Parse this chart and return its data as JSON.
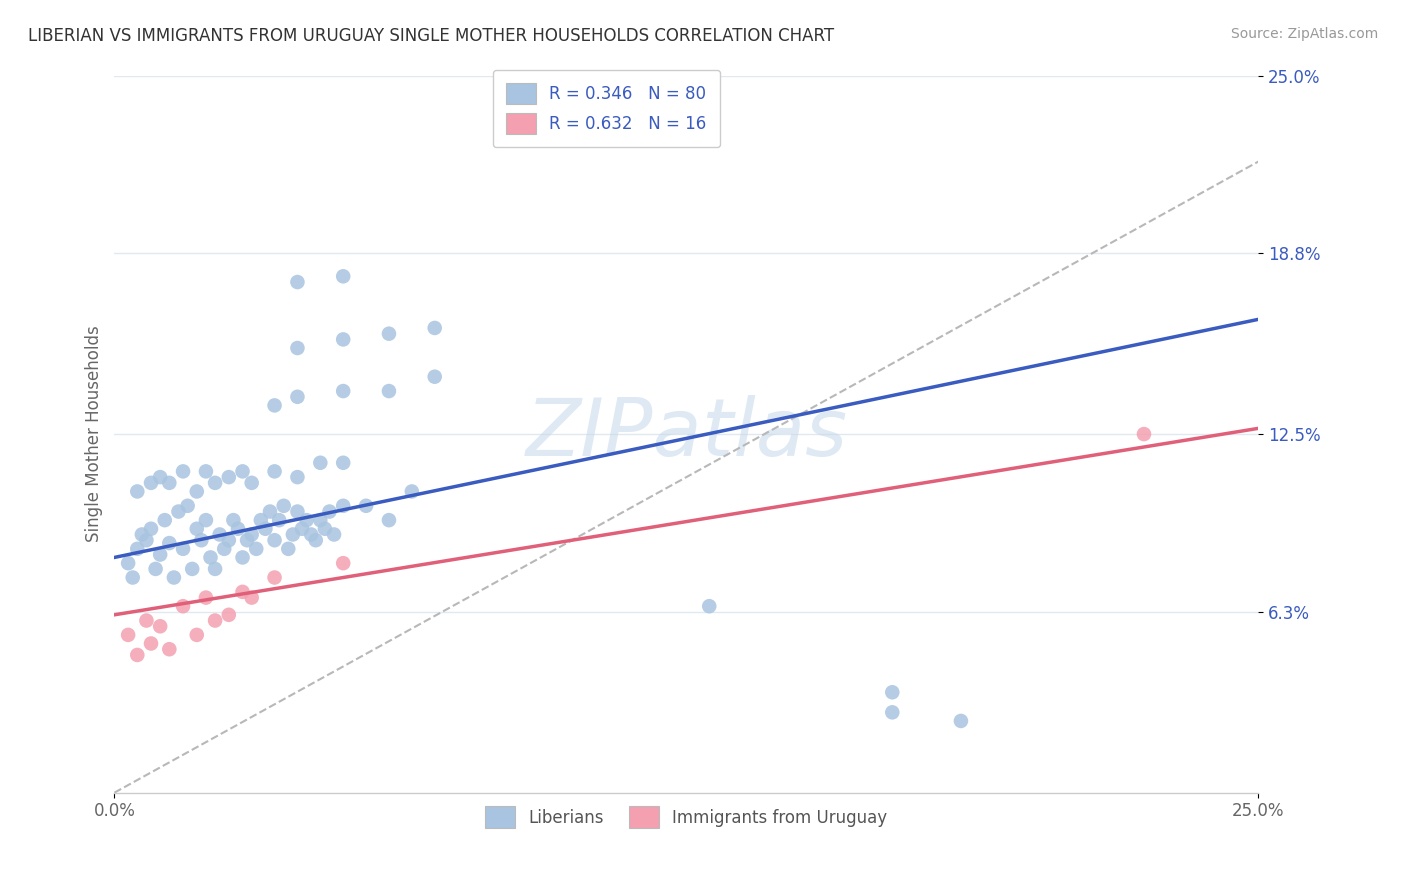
{
  "title": "LIBERIAN VS IMMIGRANTS FROM URUGUAY SINGLE MOTHER HOUSEHOLDS CORRELATION CHART",
  "source_text": "Source: ZipAtlas.com",
  "ylabel": "Single Mother Households",
  "xlim": [
    0.0,
    0.25
  ],
  "ylim": [
    0.0,
    0.25
  ],
  "y_tick_labels": [
    "6.3%",
    "12.5%",
    "18.8%",
    "25.0%"
  ],
  "y_tick_values": [
    0.063,
    0.125,
    0.188,
    0.25
  ],
  "blue_r": 0.346,
  "blue_n": 80,
  "pink_r": 0.632,
  "pink_n": 16,
  "blue_color": "#a8c4e0",
  "pink_color": "#f4a0b0",
  "blue_line_color": "#3a5bbf",
  "pink_line_color": "#e0607a",
  "dashed_line_color": "#b8b8b8",
  "legend_label_blue": "Liberians",
  "legend_label_pink": "Immigrants from Uruguay",
  "watermark": "ZIPatlas",
  "background_color": "#ffffff",
  "grid_color": "#e0e8f0",
  "blue_line_x0": 0.0,
  "blue_line_y0": 0.082,
  "blue_line_x1": 0.25,
  "blue_line_y1": 0.165,
  "pink_line_x0": 0.0,
  "pink_line_y0": 0.062,
  "pink_line_x1": 0.25,
  "pink_line_y1": 0.127,
  "dash_line_x0": 0.0,
  "dash_line_y0": 0.0,
  "dash_line_x1": 0.25,
  "dash_line_y1": 0.22,
  "blue_dots_x": [
    0.003,
    0.004,
    0.005,
    0.006,
    0.007,
    0.008,
    0.009,
    0.01,
    0.011,
    0.012,
    0.013,
    0.014,
    0.015,
    0.016,
    0.017,
    0.018,
    0.019,
    0.02,
    0.021,
    0.022,
    0.023,
    0.024,
    0.025,
    0.026,
    0.027,
    0.028,
    0.029,
    0.03,
    0.031,
    0.032,
    0.033,
    0.034,
    0.035,
    0.036,
    0.037,
    0.038,
    0.039,
    0.04,
    0.041,
    0.042,
    0.043,
    0.044,
    0.045,
    0.046,
    0.047,
    0.048,
    0.05,
    0.055,
    0.06,
    0.065,
    0.005,
    0.008,
    0.01,
    0.012,
    0.015,
    0.018,
    0.02,
    0.022,
    0.025,
    0.028,
    0.03,
    0.035,
    0.04,
    0.045,
    0.05,
    0.035,
    0.04,
    0.05,
    0.06,
    0.07,
    0.04,
    0.05,
    0.06,
    0.07,
    0.04,
    0.05,
    0.13,
    0.17,
    0.17,
    0.185
  ],
  "blue_dots_y": [
    0.08,
    0.075,
    0.085,
    0.09,
    0.088,
    0.092,
    0.078,
    0.083,
    0.095,
    0.087,
    0.075,
    0.098,
    0.085,
    0.1,
    0.078,
    0.092,
    0.088,
    0.095,
    0.082,
    0.078,
    0.09,
    0.085,
    0.088,
    0.095,
    0.092,
    0.082,
    0.088,
    0.09,
    0.085,
    0.095,
    0.092,
    0.098,
    0.088,
    0.095,
    0.1,
    0.085,
    0.09,
    0.098,
    0.092,
    0.095,
    0.09,
    0.088,
    0.095,
    0.092,
    0.098,
    0.09,
    0.1,
    0.1,
    0.095,
    0.105,
    0.105,
    0.108,
    0.11,
    0.108,
    0.112,
    0.105,
    0.112,
    0.108,
    0.11,
    0.112,
    0.108,
    0.112,
    0.11,
    0.115,
    0.115,
    0.135,
    0.138,
    0.14,
    0.14,
    0.145,
    0.155,
    0.158,
    0.16,
    0.162,
    0.178,
    0.18,
    0.065,
    0.035,
    0.028,
    0.025
  ],
  "pink_dots_x": [
    0.003,
    0.005,
    0.007,
    0.008,
    0.01,
    0.012,
    0.015,
    0.018,
    0.02,
    0.022,
    0.025,
    0.028,
    0.03,
    0.035,
    0.05,
    0.225
  ],
  "pink_dots_y": [
    0.055,
    0.048,
    0.06,
    0.052,
    0.058,
    0.05,
    0.065,
    0.055,
    0.068,
    0.06,
    0.062,
    0.07,
    0.068,
    0.075,
    0.08,
    0.125
  ]
}
